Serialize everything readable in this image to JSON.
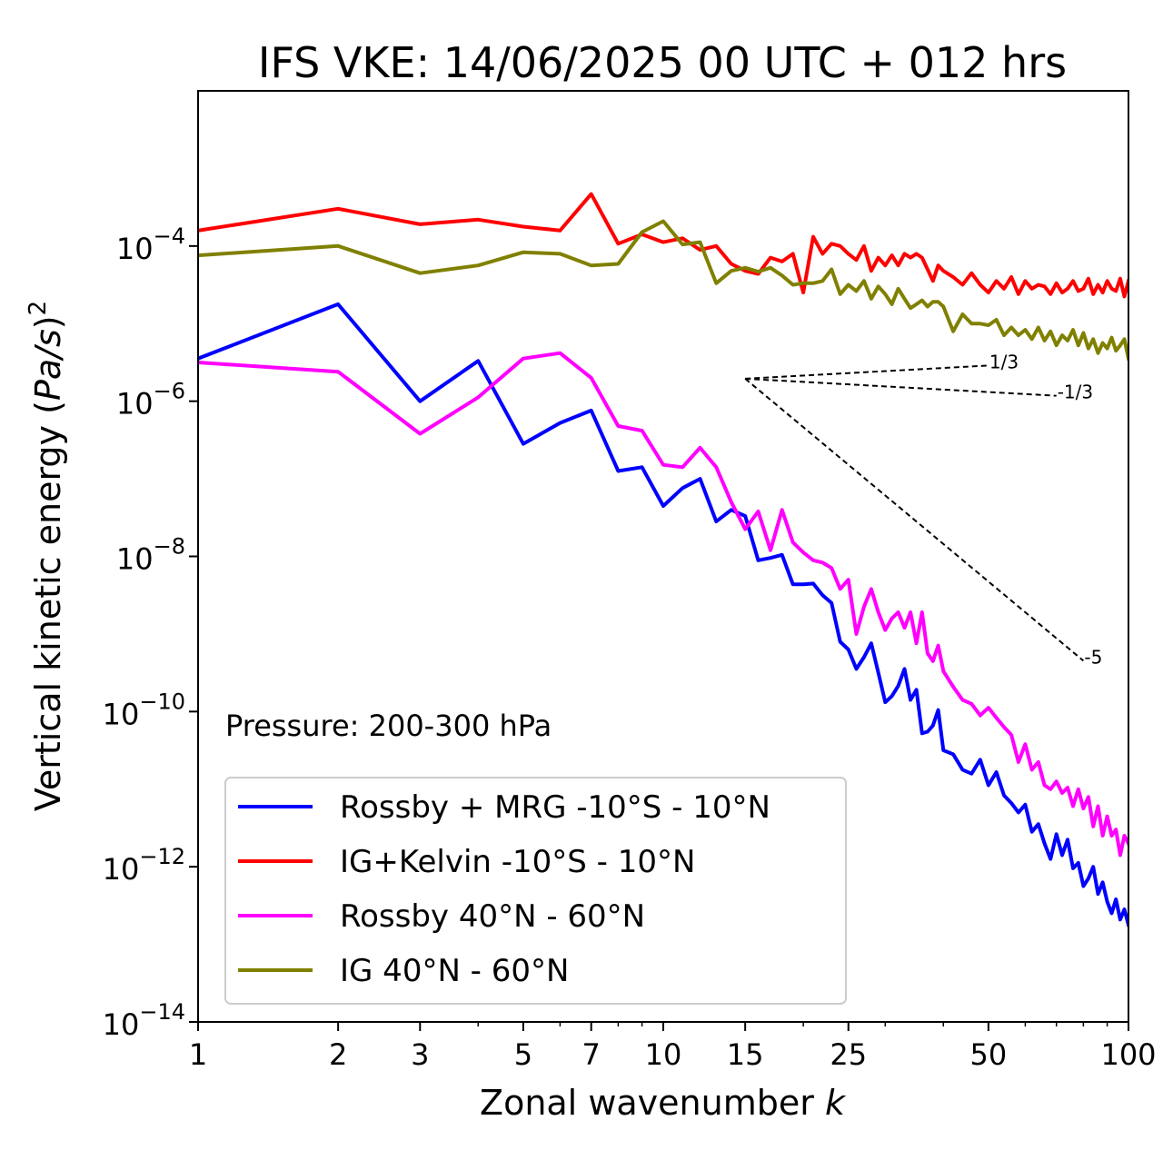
{
  "chart_data": {
    "type": "line",
    "title": "IFS VKE: 14/06/2025 00 UTC + 012 hrs",
    "xlabel": "Zonal wavenumber ",
    "xlabel_italic": "k",
    "ylabel_main": "Vertical kinetic energy (",
    "ylabel_math": "Pa/s",
    "ylabel_close": ")",
    "ylabel_sup": "2",
    "x_scale": "log",
    "y_scale": "log",
    "xlim": [
      1,
      100
    ],
    "ylim": [
      1e-14,
      0.01
    ],
    "x_ticks": [
      1,
      2,
      3,
      5,
      7,
      10,
      15,
      25,
      50,
      100
    ],
    "x_tick_labels": [
      "1",
      "2",
      "3",
      "5",
      "7",
      "10",
      "15",
      "25",
      "50",
      "100"
    ],
    "y_ticks": [
      -14,
      -12,
      -10,
      -8,
      -6,
      -4
    ],
    "y_tick_base": "10",
    "y_tick_exponents": [
      "−14",
      "−12",
      "−10",
      "−8",
      "−6",
      "−4"
    ],
    "annotation": "Pressure: 200-300 hPa",
    "legend_position": "lower-left",
    "grid": false,
    "series": [
      {
        "name": "Rossby + MRG -10°S - 10°N",
        "color": "#0000ff",
        "x": [
          1,
          2,
          3,
          4,
          5,
          6,
          7,
          8,
          9,
          10,
          11,
          12,
          13,
          14,
          15,
          16,
          17,
          18,
          19,
          20,
          21,
          22,
          23,
          24,
          25,
          26,
          27,
          28,
          29,
          30,
          31,
          32,
          33,
          34,
          35,
          36,
          37,
          38,
          39,
          40,
          42,
          44,
          46,
          48,
          50,
          52,
          54,
          56,
          58,
          60,
          62,
          64,
          66,
          68,
          70,
          72,
          74,
          76,
          78,
          80,
          82,
          84,
          86,
          88,
          90,
          92,
          94,
          96,
          98,
          100
        ],
        "y": [
          -5.45,
          -4.75,
          -6.0,
          -5.48,
          -6.55,
          -6.28,
          -6.12,
          -6.9,
          -6.85,
          -7.35,
          -7.12,
          -7.0,
          -7.55,
          -7.4,
          -7.48,
          -8.05,
          -8.02,
          -7.98,
          -8.36,
          -8.36,
          -8.35,
          -8.5,
          -8.6,
          -9.1,
          -9.2,
          -9.45,
          -9.3,
          -9.12,
          -9.5,
          -9.88,
          -9.8,
          -9.67,
          -9.45,
          -9.85,
          -9.72,
          -10.28,
          -10.26,
          -10.18,
          -9.98,
          -10.5,
          -10.55,
          -10.75,
          -10.8,
          -10.62,
          -10.95,
          -10.78,
          -11.08,
          -11.18,
          -11.3,
          -11.2,
          -11.55,
          -11.45,
          -11.7,
          -11.9,
          -11.58,
          -11.85,
          -11.65,
          -12.02,
          -11.95,
          -12.25,
          -12.15,
          -12.0,
          -12.35,
          -12.2,
          -12.45,
          -12.6,
          -12.42,
          -12.68,
          -12.55,
          -12.75
        ]
      },
      {
        "name": "IG+Kelvin -10°S - 10°N",
        "color": "#ff0000",
        "x": [
          1,
          2,
          3,
          4,
          5,
          6,
          7,
          8,
          9,
          10,
          11,
          12,
          13,
          14,
          15,
          16,
          17,
          18,
          19,
          20,
          21,
          22,
          23,
          24,
          25,
          26,
          27,
          28,
          29,
          30,
          31,
          32,
          33,
          34,
          35,
          36,
          37,
          38,
          39,
          40,
          42,
          44,
          46,
          48,
          50,
          52,
          54,
          56,
          58,
          60,
          62,
          64,
          66,
          68,
          70,
          72,
          74,
          76,
          78,
          80,
          82,
          84,
          86,
          88,
          90,
          92,
          94,
          96,
          98,
          100
        ],
        "y": [
          -3.8,
          -3.52,
          -3.72,
          -3.66,
          -3.75,
          -3.8,
          -3.33,
          -3.97,
          -3.85,
          -3.95,
          -3.9,
          -4.05,
          -4.0,
          -4.23,
          -4.32,
          -4.36,
          -4.15,
          -4.2,
          -4.1,
          -4.6,
          -3.88,
          -4.1,
          -3.97,
          -4.0,
          -4.1,
          -4.18,
          -4.0,
          -4.32,
          -4.15,
          -4.25,
          -4.12,
          -4.25,
          -4.1,
          -4.15,
          -4.1,
          -4.15,
          -4.3,
          -4.45,
          -4.25,
          -4.32,
          -4.4,
          -4.5,
          -4.35,
          -4.5,
          -4.6,
          -4.45,
          -4.55,
          -4.4,
          -4.62,
          -4.45,
          -4.55,
          -4.5,
          -4.52,
          -4.62,
          -4.48,
          -4.6,
          -4.55,
          -4.45,
          -4.58,
          -4.55,
          -4.42,
          -4.62,
          -4.5,
          -4.6,
          -4.45,
          -4.55,
          -4.58,
          -4.42,
          -4.65,
          -4.45
        ]
      },
      {
        "name": "Rossby 40°N - 60°N",
        "color": "#ff00ff",
        "x": [
          1,
          2,
          3,
          4,
          5,
          6,
          7,
          8,
          9,
          10,
          11,
          12,
          13,
          14,
          15,
          16,
          17,
          18,
          19,
          20,
          21,
          22,
          23,
          24,
          25,
          26,
          27,
          28,
          29,
          30,
          31,
          32,
          33,
          34,
          35,
          36,
          37,
          38,
          39,
          40,
          42,
          44,
          46,
          48,
          50,
          52,
          54,
          56,
          58,
          60,
          62,
          64,
          66,
          68,
          70,
          72,
          74,
          76,
          78,
          80,
          82,
          84,
          86,
          88,
          90,
          92,
          94,
          96,
          98,
          100
        ],
        "y": [
          -5.5,
          -5.62,
          -6.42,
          -5.95,
          -5.45,
          -5.38,
          -5.7,
          -6.32,
          -6.38,
          -6.82,
          -6.85,
          -6.6,
          -6.85,
          -7.3,
          -7.65,
          -7.42,
          -7.92,
          -7.4,
          -7.82,
          -7.95,
          -8.05,
          -8.08,
          -8.15,
          -8.42,
          -8.3,
          -9.0,
          -8.65,
          -8.42,
          -8.72,
          -8.95,
          -8.8,
          -8.72,
          -8.92,
          -8.72,
          -9.12,
          -8.72,
          -9.25,
          -9.35,
          -9.15,
          -9.48,
          -9.68,
          -9.85,
          -9.9,
          -10.05,
          -9.95,
          -10.08,
          -10.2,
          -10.3,
          -10.65,
          -10.42,
          -10.75,
          -10.65,
          -10.95,
          -11.0,
          -10.9,
          -11.05,
          -10.98,
          -11.22,
          -11.0,
          -11.25,
          -11.1,
          -11.48,
          -11.22,
          -11.6,
          -11.35,
          -11.6,
          -11.52,
          -11.85,
          -11.6,
          -11.7
        ]
      },
      {
        "name": "IG 40°N - 60°N",
        "color": "#808000",
        "x": [
          1,
          2,
          3,
          4,
          5,
          6,
          7,
          8,
          9,
          10,
          11,
          12,
          13,
          14,
          15,
          16,
          17,
          18,
          19,
          20,
          21,
          22,
          23,
          24,
          25,
          26,
          27,
          28,
          29,
          30,
          31,
          32,
          33,
          34,
          35,
          36,
          37,
          38,
          39,
          40,
          42,
          44,
          46,
          48,
          50,
          52,
          54,
          56,
          58,
          60,
          62,
          64,
          66,
          68,
          70,
          72,
          74,
          76,
          78,
          80,
          82,
          84,
          86,
          88,
          90,
          92,
          94,
          96,
          98,
          100
        ],
        "y": [
          -4.12,
          -4.0,
          -4.35,
          -4.25,
          -4.08,
          -4.1,
          -4.25,
          -4.23,
          -3.82,
          -3.68,
          -3.98,
          -3.95,
          -4.48,
          -4.32,
          -4.28,
          -4.33,
          -4.28,
          -4.38,
          -4.5,
          -4.48,
          -4.48,
          -4.45,
          -4.3,
          -4.62,
          -4.5,
          -4.58,
          -4.45,
          -4.68,
          -4.52,
          -4.62,
          -4.75,
          -4.55,
          -4.68,
          -4.8,
          -4.75,
          -4.7,
          -4.78,
          -4.72,
          -4.72,
          -4.78,
          -5.1,
          -4.88,
          -5.0,
          -5.0,
          -5.02,
          -4.95,
          -5.15,
          -5.05,
          -5.15,
          -5.08,
          -5.2,
          -5.05,
          -5.22,
          -5.1,
          -5.28,
          -5.15,
          -5.22,
          -5.08,
          -5.28,
          -5.12,
          -5.32,
          -5.2,
          -5.38,
          -5.25,
          -5.32,
          -5.18,
          -5.35,
          -5.28,
          -5.2,
          -5.45
        ]
      }
    ],
    "reference_lines": [
      {
        "label": "1/3",
        "x": [
          15,
          50
        ],
        "y": [
          -5.71,
          -5.54
        ]
      },
      {
        "label": "-1/3",
        "x": [
          15,
          70
        ],
        "y": [
          -5.71,
          -5.93
        ]
      },
      {
        "label": "-5",
        "x": [
          15,
          80
        ],
        "y": [
          -5.71,
          -9.345
        ]
      }
    ]
  }
}
